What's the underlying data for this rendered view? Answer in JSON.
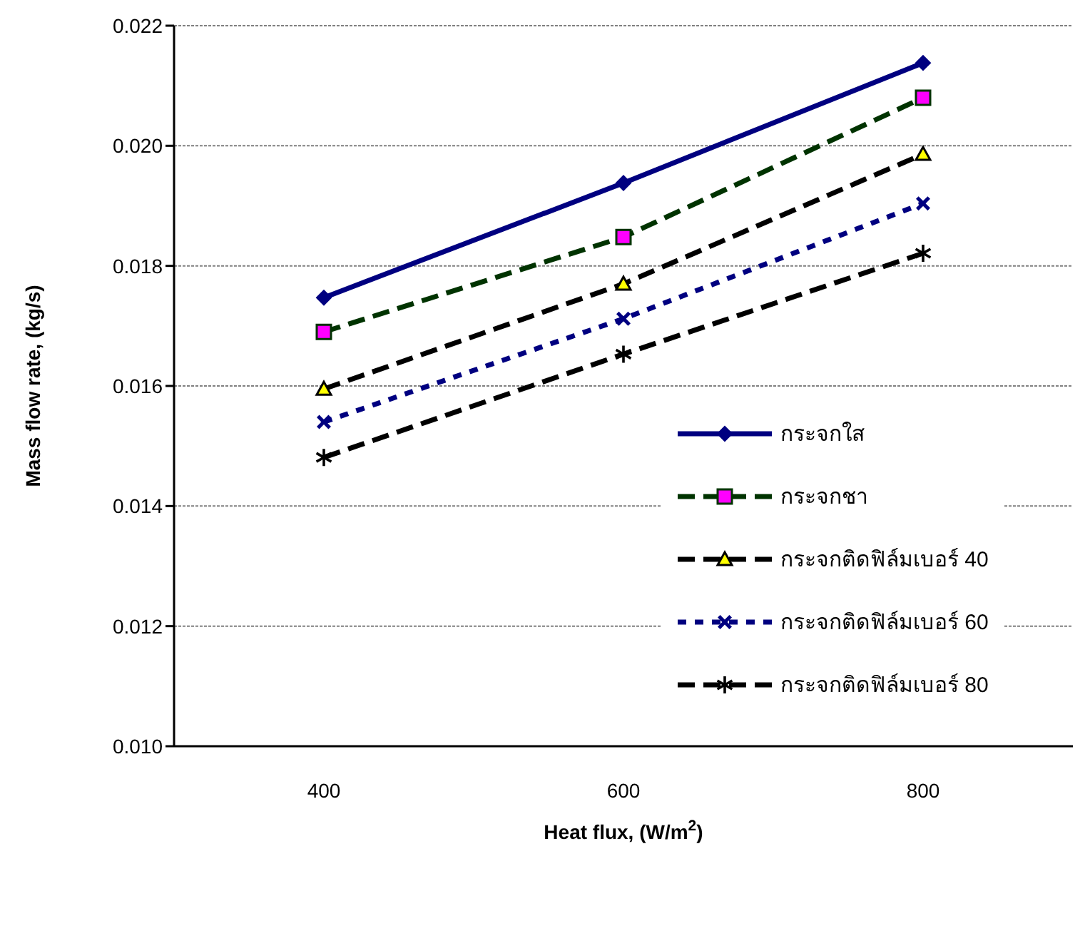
{
  "chart_data": {
    "type": "line",
    "xlabel": "Heat flux, (W/m$^{2}$)",
    "ylabel": "Mass flow rate, (kg/s)",
    "categories": [
      "400",
      "600",
      "800"
    ],
    "ylim": [
      0.01,
      0.022
    ],
    "yticks": [
      {
        "value": 0.01,
        "label": "0.010"
      },
      {
        "value": 0.012,
        "label": "0.012"
      },
      {
        "value": 0.014,
        "label": "0.014"
      },
      {
        "value": 0.016,
        "label": "0.016"
      },
      {
        "value": 0.018,
        "label": "0.018"
      },
      {
        "value": 0.02,
        "label": "0.020"
      },
      {
        "value": 0.022,
        "label": "0.022"
      }
    ],
    "grid": "y",
    "legend": "bottom right",
    "series": [
      {
        "name": "กระจกใส",
        "color": "#000080",
        "values": [
          0.01747,
          0.01938,
          0.02138
        ],
        "marker": "diamond",
        "line_style": "solid"
      },
      {
        "name": "กระจกชา",
        "color": "#003300",
        "colors": [
          "#ff00ff",
          "#ff00ff",
          "#ff00ff"
        ],
        "values": [
          0.0169,
          0.01848,
          0.0208
        ],
        "marker": "square",
        "line_style": "dashed"
      },
      {
        "name": "กระจกติดฟิล์มเบอร์ 40",
        "color": "#000000",
        "colors": [
          "#ffff00",
          "#ffff00",
          "#ffff00"
        ],
        "values": [
          0.01595,
          0.0177,
          0.01986
        ],
        "marker": "triangle",
        "line_style": "dashed"
      },
      {
        "name": "กระจกติดฟิล์มเบอร์ 60",
        "color": "#000080",
        "values": [
          0.0154,
          0.01712,
          0.01904
        ],
        "marker": "cross",
        "line_style": "dotted"
      },
      {
        "name": "กระจกติดฟิล์มเบอร์ 80",
        "color": "#000000",
        "values": [
          0.01481,
          0.01653,
          0.01821
        ],
        "marker": "star",
        "line_style": "dashed"
      }
    ]
  }
}
